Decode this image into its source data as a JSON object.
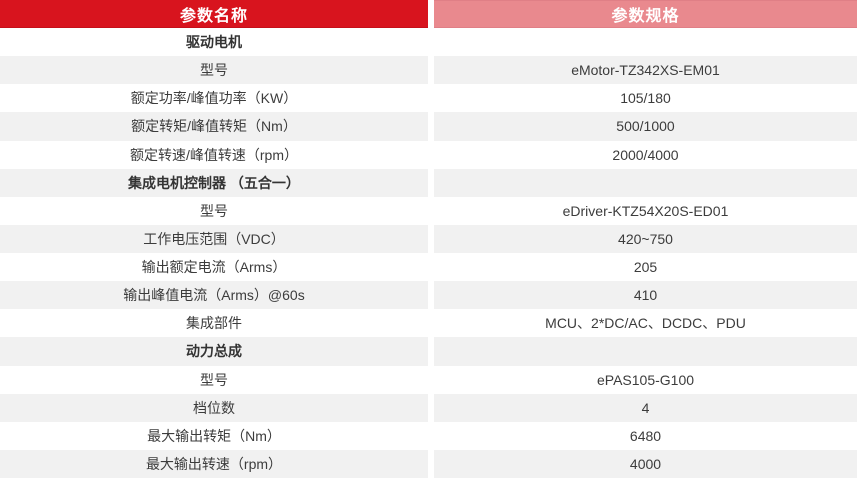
{
  "table": {
    "headers": {
      "name": "参数名称",
      "spec": "参数规格"
    },
    "rows": [
      {
        "label": "驱动电机",
        "value": "",
        "section": true
      },
      {
        "label": "型号",
        "value": "eMotor-TZ342XS-EM01",
        "section": false
      },
      {
        "label": "额定功率/峰值功率（KW）",
        "value": "105/180",
        "section": false
      },
      {
        "label": "额定转矩/峰值转矩（Nm）",
        "value": "500/1000",
        "section": false
      },
      {
        "label": "额定转速/峰值转速（rpm）",
        "value": "2000/4000",
        "section": false
      },
      {
        "label": "集成电机控制器 （五合一）",
        "value": "",
        "section": true
      },
      {
        "label": "型号",
        "value": "eDriver-KTZ54X20S-ED01",
        "section": false
      },
      {
        "label": "工作电压范围（VDC）",
        "value": "420~750",
        "section": false
      },
      {
        "label": "输出额定电流（Arms）",
        "value": "205",
        "section": false
      },
      {
        "label": "输出峰值电流（Arms）@60s",
        "value": "410",
        "section": false
      },
      {
        "label": "集成部件",
        "value": "MCU、2*DC/AC、DCDC、PDU",
        "section": false
      },
      {
        "label": "动力总成",
        "value": "",
        "section": true
      },
      {
        "label": "型号",
        "value": "ePAS105-G100",
        "section": false
      },
      {
        "label": "档位数",
        "value": "4",
        "section": false
      },
      {
        "label": "最大输出转矩（Nm）",
        "value": "6480",
        "section": false
      },
      {
        "label": "最大输出转速（rpm）",
        "value": "4000",
        "section": false
      }
    ],
    "colors": {
      "header_left_bg": "#d8141e",
      "header_right_bg": "#e9898e",
      "row_alt_bg": "#f1f1f1",
      "header_text": "#ffffff",
      "body_text": "#3c3c3c"
    }
  }
}
